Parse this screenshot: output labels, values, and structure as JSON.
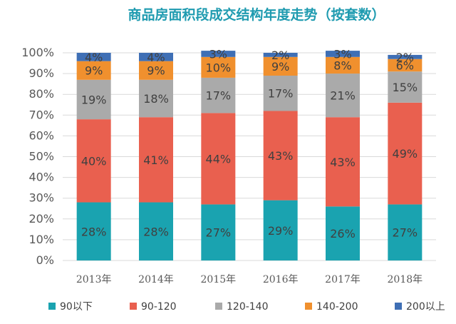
{
  "chart_data": {
    "type": "bar",
    "stacked": true,
    "title": "商品房面积段成交结构年度走势（按套数）",
    "categories": [
      "2013年",
      "2014年",
      "2015年",
      "2016年",
      "2017年",
      "2018年"
    ],
    "ylim": [
      0,
      100
    ],
    "yticks": [
      "0%",
      "10%",
      "20%",
      "30%",
      "40%",
      "50%",
      "60%",
      "70%",
      "80%",
      "90%",
      "100%"
    ],
    "grid": true,
    "legend_position": "bottom",
    "series": [
      {
        "name": "90以下",
        "color": "#1aa3b0",
        "values": [
          28,
          28,
          27,
          29,
          26,
          27
        ],
        "labels": [
          "28%",
          "28%",
          "27%",
          "29%",
          "26%",
          "27%"
        ]
      },
      {
        "name": "90-120",
        "color": "#e9604f",
        "values": [
          40,
          41,
          44,
          43,
          43,
          49
        ],
        "labels": [
          "40%",
          "41%",
          "44%",
          "43%",
          "43%",
          "49%"
        ]
      },
      {
        "name": "120-140",
        "color": "#aaaaaa",
        "values": [
          19,
          18,
          17,
          17,
          21,
          15
        ],
        "labels": [
          "19%",
          "18%",
          "17%",
          "17%",
          "21%",
          "15%"
        ]
      },
      {
        "name": "140-200",
        "color": "#f0902e",
        "values": [
          9,
          9,
          10,
          9,
          8,
          6
        ],
        "labels": [
          "9%",
          "9%",
          "10%",
          "9%",
          "8%",
          "6%"
        ]
      },
      {
        "name": "200以上",
        "color": "#3f6fb5",
        "values": [
          4,
          4,
          3,
          2,
          3,
          2
        ],
        "labels": [
          "4%",
          "4%",
          "3%",
          "2%",
          "3%",
          "2%"
        ]
      }
    ]
  }
}
